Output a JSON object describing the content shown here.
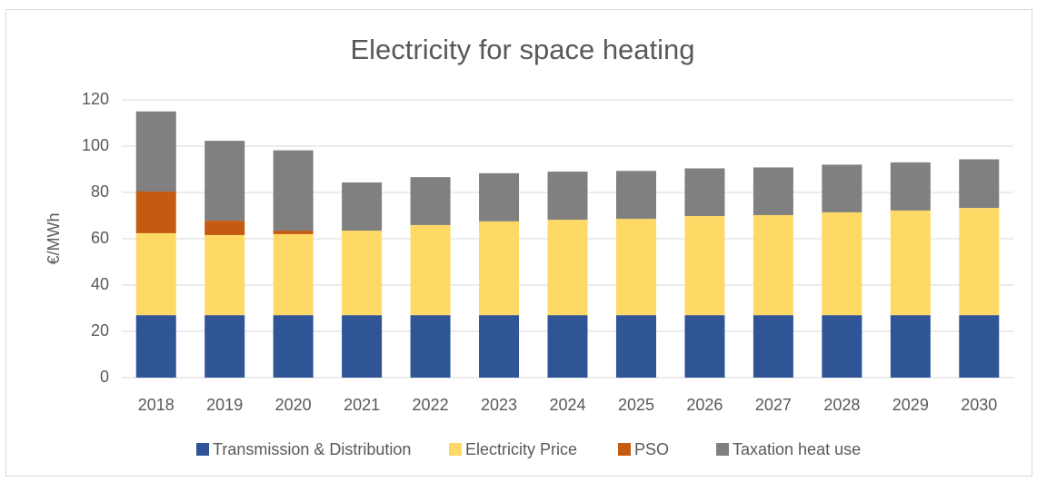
{
  "chart_data": {
    "type": "stacked_bar",
    "title": "Electricity for space heating",
    "y_label": "€/MWh",
    "categories": [
      "2018",
      "2019",
      "2020",
      "2021",
      "2022",
      "2023",
      "2024",
      "2025",
      "2026",
      "2027",
      "2028",
      "2029",
      "2030"
    ],
    "series": [
      {
        "name": "Transmission & Distribution",
        "color": "#2f5597",
        "values": [
          27,
          27,
          27,
          27,
          27,
          27,
          27,
          27,
          27,
          27,
          27,
          27,
          27
        ]
      },
      {
        "name": "Electricity Price",
        "color": "#ffd966",
        "values": [
          35.4,
          34.6,
          35,
          36.5,
          38.9,
          40.5,
          41.2,
          41.6,
          42.8,
          43.2,
          44.4,
          45.2,
          46.3
        ]
      },
      {
        "name": "PSO",
        "color": "#c55a11",
        "values": [
          18,
          6.2,
          1.5,
          0,
          0,
          0,
          0,
          0,
          0,
          0,
          0,
          0,
          0
        ]
      },
      {
        "name": "Taxation heat use",
        "color": "#808080",
        "values": [
          34.6,
          34.5,
          34.7,
          20.8,
          20.7,
          20.8,
          20.8,
          20.7,
          20.6,
          20.6,
          20.6,
          20.8,
          21
        ]
      }
    ],
    "ylim": [
      0,
      120
    ],
    "yticks": [
      0,
      20,
      40,
      60,
      80,
      100,
      120
    ],
    "grid": true,
    "legend": "bottom"
  }
}
